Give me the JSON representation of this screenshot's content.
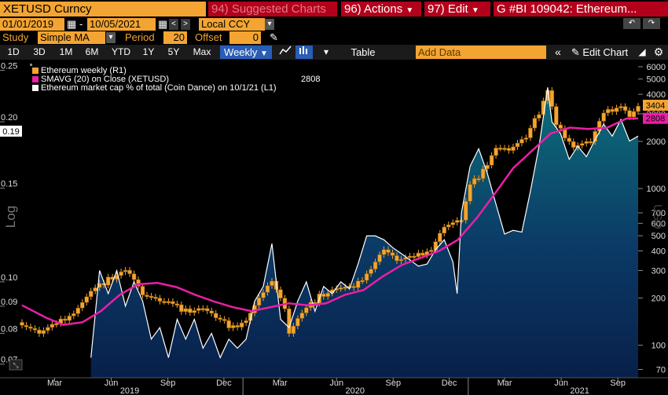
{
  "toolbar": {
    "ticker": "XETUSD Curncy",
    "suggested": "94) Suggested Charts",
    "actions": "96) Actions",
    "edit": "97) Edit",
    "title": "G #BI 109042: Ethereum..."
  },
  "controls": {
    "start_date": "01/01/2019",
    "dash": "-",
    "end_date": "10/05/2021",
    "currency": "Local CCY",
    "study_label": "Study",
    "study_value": "Simple MA",
    "period_label": "Period",
    "period_value": "20",
    "offset_label": "Offset",
    "offset_value": "0"
  },
  "ranges": [
    "1D",
    "3D",
    "1M",
    "6M",
    "YTD",
    "1Y",
    "5Y",
    "Max"
  ],
  "frequency": "Weekly",
  "table_label": "Table",
  "add_data_placeholder": "Add Data",
  "edit_chart_label": "Edit Chart",
  "colors": {
    "candle": "#f3a432",
    "sma": "#ea1fa6",
    "marketcap": "#ffffff",
    "accent": "#f3a432",
    "red": "#b3001b"
  },
  "chart_data": {
    "type": "line",
    "title": "",
    "xlabel": "",
    "left_axis": {
      "label": "Log",
      "scale": "log",
      "range": [
        0.066,
        0.26
      ],
      "ticks": [
        0.07,
        0.08,
        0.09,
        0.1,
        0.15,
        0.2,
        0.25
      ],
      "tick_labels": [
        "0.07",
        "0.08",
        "0.09",
        "0.10",
        "0.15",
        "0.20",
        "0.25"
      ],
      "last_value_label": "0.19",
      "last_value": 0.19
    },
    "right_axis": {
      "label": "USD",
      "scale": "log",
      "range": [
        62,
        6500
      ],
      "ticks": [
        70,
        100,
        200,
        300,
        400,
        500,
        600,
        700,
        1000,
        2000,
        3000,
        4000,
        5000,
        6000
      ],
      "tick_labels": [
        "70",
        "100",
        "200",
        "300",
        "400",
        "500",
        "600",
        "700",
        "1000",
        "2000",
        "3000",
        "4000",
        "5000",
        "6000"
      ],
      "badges": [
        {
          "label": "3404",
          "value": 3404
        },
        {
          "label": "2808",
          "value": 2808
        }
      ]
    },
    "x_axis": {
      "range": [
        "2019-01-07",
        "2021-10-04"
      ],
      "month_labels": [
        {
          "label": "Mar",
          "date": "2019-03-01"
        },
        {
          "label": "Jun",
          "date": "2019-06-01"
        },
        {
          "label": "Sep",
          "date": "2019-09-01"
        },
        {
          "label": "Dec",
          "date": "2019-12-01"
        },
        {
          "label": "Mar",
          "date": "2020-03-01"
        },
        {
          "label": "Jun",
          "date": "2020-06-01"
        },
        {
          "label": "Sep",
          "date": "2020-09-01"
        },
        {
          "label": "Dec",
          "date": "2020-12-01"
        },
        {
          "label": "Mar",
          "date": "2021-03-01"
        },
        {
          "label": "Jun",
          "date": "2021-06-01"
        },
        {
          "label": "Sep",
          "date": "2021-09-01"
        }
      ],
      "year_labels": [
        {
          "label": "2019",
          "date": "2019-07-01"
        },
        {
          "label": "2020",
          "date": "2020-07-01"
        },
        {
          "label": "2021",
          "date": "2021-07-01"
        }
      ]
    },
    "legend": [
      {
        "name": "Ethereum weekly (R1)",
        "color": "#f3a432"
      },
      {
        "name": "SMAVG (20)  on Close (XETUSD)",
        "color": "#ea1fa6",
        "value": "2808"
      },
      {
        "name": "Ethereum market cap % of total (Coin Dance) on 10/1/21 (L1)",
        "color": "#ffffff"
      }
    ],
    "legend_position": "top-left",
    "candle_series": {
      "name": "Ethereum weekly",
      "axis": "right",
      "weekly_close": [
        {
          "date": "2019-01-07",
          "close": 140
        },
        {
          "date": "2019-02-04",
          "close": 120
        },
        {
          "date": "2019-03-04",
          "close": 135
        },
        {
          "date": "2019-04-01",
          "close": 165
        },
        {
          "date": "2019-05-06",
          "close": 230
        },
        {
          "date": "2019-05-27",
          "close": 265
        },
        {
          "date": "2019-06-24",
          "close": 310
        },
        {
          "date": "2019-07-08",
          "close": 270
        },
        {
          "date": "2019-07-22",
          "close": 215
        },
        {
          "date": "2019-08-19",
          "close": 190
        },
        {
          "date": "2019-09-09",
          "close": 180
        },
        {
          "date": "2019-09-30",
          "close": 165
        },
        {
          "date": "2019-10-28",
          "close": 175
        },
        {
          "date": "2019-11-18",
          "close": 150
        },
        {
          "date": "2019-12-16",
          "close": 130
        },
        {
          "date": "2020-01-06",
          "close": 150
        },
        {
          "date": "2020-02-03",
          "close": 220
        },
        {
          "date": "2020-02-17",
          "close": 260
        },
        {
          "date": "2020-03-09",
          "close": 170
        },
        {
          "date": "2020-03-16",
          "close": 120
        },
        {
          "date": "2020-04-06",
          "close": 160
        },
        {
          "date": "2020-05-04",
          "close": 205
        },
        {
          "date": "2020-06-01",
          "close": 235
        },
        {
          "date": "2020-06-29",
          "close": 230
        },
        {
          "date": "2020-07-27",
          "close": 320
        },
        {
          "date": "2020-08-17",
          "close": 420
        },
        {
          "date": "2020-09-07",
          "close": 350
        },
        {
          "date": "2020-10-05",
          "close": 360
        },
        {
          "date": "2020-11-02",
          "close": 420
        },
        {
          "date": "2020-11-23",
          "close": 580
        },
        {
          "date": "2020-12-21",
          "close": 620
        },
        {
          "date": "2021-01-04",
          "close": 1050
        },
        {
          "date": "2021-01-25",
          "close": 1300
        },
        {
          "date": "2021-02-15",
          "close": 1900
        },
        {
          "date": "2021-03-08",
          "close": 1800
        },
        {
          "date": "2021-04-05",
          "close": 2100
        },
        {
          "date": "2021-05-03",
          "close": 3500
        },
        {
          "date": "2021-05-10",
          "close": 4150
        },
        {
          "date": "2021-05-24",
          "close": 2500
        },
        {
          "date": "2021-06-21",
          "close": 1900
        },
        {
          "date": "2021-07-19",
          "close": 2000
        },
        {
          "date": "2021-08-09",
          "close": 3000
        },
        {
          "date": "2021-09-06",
          "close": 3500
        },
        {
          "date": "2021-09-20",
          "close": 3000
        },
        {
          "date": "2021-10-04",
          "close": 3404
        }
      ]
    },
    "sma_series": {
      "name": "SMAVG (20)",
      "axis": "right",
      "points": [
        {
          "date": "2019-01-07",
          "value": 180
        },
        {
          "date": "2019-02-15",
          "value": 150
        },
        {
          "date": "2019-03-15",
          "value": 135
        },
        {
          "date": "2019-04-15",
          "value": 140
        },
        {
          "date": "2019-05-15",
          "value": 165
        },
        {
          "date": "2019-06-15",
          "value": 210
        },
        {
          "date": "2019-07-15",
          "value": 245
        },
        {
          "date": "2019-08-15",
          "value": 250
        },
        {
          "date": "2019-09-15",
          "value": 235
        },
        {
          "date": "2019-10-15",
          "value": 210
        },
        {
          "date": "2019-11-15",
          "value": 190
        },
        {
          "date": "2019-12-15",
          "value": 175
        },
        {
          "date": "2020-01-15",
          "value": 165
        },
        {
          "date": "2020-02-15",
          "value": 175
        },
        {
          "date": "2020-03-15",
          "value": 185
        },
        {
          "date": "2020-04-15",
          "value": 180
        },
        {
          "date": "2020-05-15",
          "value": 185
        },
        {
          "date": "2020-06-15",
          "value": 210
        },
        {
          "date": "2020-07-15",
          "value": 225
        },
        {
          "date": "2020-08-15",
          "value": 275
        },
        {
          "date": "2020-09-15",
          "value": 325
        },
        {
          "date": "2020-10-15",
          "value": 360
        },
        {
          "date": "2020-11-15",
          "value": 400
        },
        {
          "date": "2020-12-15",
          "value": 470
        },
        {
          "date": "2021-01-15",
          "value": 650
        },
        {
          "date": "2021-02-15",
          "value": 950
        },
        {
          "date": "2021-03-15",
          "value": 1350
        },
        {
          "date": "2021-04-15",
          "value": 1750
        },
        {
          "date": "2021-05-15",
          "value": 2250
        },
        {
          "date": "2021-06-15",
          "value": 2450
        },
        {
          "date": "2021-07-15",
          "value": 2400
        },
        {
          "date": "2021-08-15",
          "value": 2450
        },
        {
          "date": "2021-09-15",
          "value": 2800
        },
        {
          "date": "2021-10-04",
          "value": 2808
        }
      ]
    },
    "marketcap_series": {
      "name": "Ethereum market cap % of total (Coin Dance)",
      "axis": "left",
      "points": [
        {
          "date": "2019-04-29",
          "value": 0.072
        },
        {
          "date": "2019-05-13",
          "value": 0.105
        },
        {
          "date": "2019-05-27",
          "value": 0.095
        },
        {
          "date": "2019-06-10",
          "value": 0.105
        },
        {
          "date": "2019-06-24",
          "value": 0.09
        },
        {
          "date": "2019-07-08",
          "value": 0.1
        },
        {
          "date": "2019-07-22",
          "value": 0.092
        },
        {
          "date": "2019-08-05",
          "value": 0.078
        },
        {
          "date": "2019-08-19",
          "value": 0.082
        },
        {
          "date": "2019-09-02",
          "value": 0.072
        },
        {
          "date": "2019-09-16",
          "value": 0.085
        },
        {
          "date": "2019-09-30",
          "value": 0.078
        },
        {
          "date": "2019-10-14",
          "value": 0.085
        },
        {
          "date": "2019-10-28",
          "value": 0.075
        },
        {
          "date": "2019-11-11",
          "value": 0.08
        },
        {
          "date": "2019-11-25",
          "value": 0.072
        },
        {
          "date": "2019-12-09",
          "value": 0.078
        },
        {
          "date": "2019-12-23",
          "value": 0.075
        },
        {
          "date": "2020-01-06",
          "value": 0.078
        },
        {
          "date": "2020-01-20",
          "value": 0.092
        },
        {
          "date": "2020-02-03",
          "value": 0.098
        },
        {
          "date": "2020-02-17",
          "value": 0.118
        },
        {
          "date": "2020-03-02",
          "value": 0.085
        },
        {
          "date": "2020-03-16",
          "value": 0.082
        },
        {
          "date": "2020-03-30",
          "value": 0.092
        },
        {
          "date": "2020-04-13",
          "value": 0.1
        },
        {
          "date": "2020-04-27",
          "value": 0.088
        },
        {
          "date": "2020-05-11",
          "value": 0.098
        },
        {
          "date": "2020-05-25",
          "value": 0.095
        },
        {
          "date": "2020-06-08",
          "value": 0.1
        },
        {
          "date": "2020-06-22",
          "value": 0.097
        },
        {
          "date": "2020-07-06",
          "value": 0.108
        },
        {
          "date": "2020-07-20",
          "value": 0.122
        },
        {
          "date": "2020-08-03",
          "value": 0.122
        },
        {
          "date": "2020-08-17",
          "value": 0.12
        },
        {
          "date": "2020-08-31",
          "value": 0.116
        },
        {
          "date": "2020-09-14",
          "value": 0.113
        },
        {
          "date": "2020-09-28",
          "value": 0.11
        },
        {
          "date": "2020-10-12",
          "value": 0.107
        },
        {
          "date": "2020-10-26",
          "value": 0.108
        },
        {
          "date": "2020-11-09",
          "value": 0.115
        },
        {
          "date": "2020-11-23",
          "value": 0.12
        },
        {
          "date": "2020-12-07",
          "value": 0.109
        },
        {
          "date": "2020-12-14",
          "value": 0.095
        },
        {
          "date": "2020-12-21",
          "value": 0.135
        },
        {
          "date": "2021-01-04",
          "value": 0.165
        },
        {
          "date": "2021-01-18",
          "value": 0.178
        },
        {
          "date": "2021-02-01",
          "value": 0.16
        },
        {
          "date": "2021-02-15",
          "value": 0.14
        },
        {
          "date": "2021-03-01",
          "value": 0.123
        },
        {
          "date": "2021-03-15",
          "value": 0.125
        },
        {
          "date": "2021-03-29",
          "value": 0.124
        },
        {
          "date": "2021-04-12",
          "value": 0.148
        },
        {
          "date": "2021-04-26",
          "value": 0.18
        },
        {
          "date": "2021-05-10",
          "value": 0.232
        },
        {
          "date": "2021-05-17",
          "value": 0.2
        },
        {
          "date": "2021-05-31",
          "value": 0.19
        },
        {
          "date": "2021-06-14",
          "value": 0.17
        },
        {
          "date": "2021-06-28",
          "value": 0.18
        },
        {
          "date": "2021-07-12",
          "value": 0.172
        },
        {
          "date": "2021-07-26",
          "value": 0.185
        },
        {
          "date": "2021-08-09",
          "value": 0.198
        },
        {
          "date": "2021-08-23",
          "value": 0.188
        },
        {
          "date": "2021-09-06",
          "value": 0.202
        },
        {
          "date": "2021-09-20",
          "value": 0.184
        },
        {
          "date": "2021-10-04",
          "value": 0.188
        }
      ]
    }
  }
}
